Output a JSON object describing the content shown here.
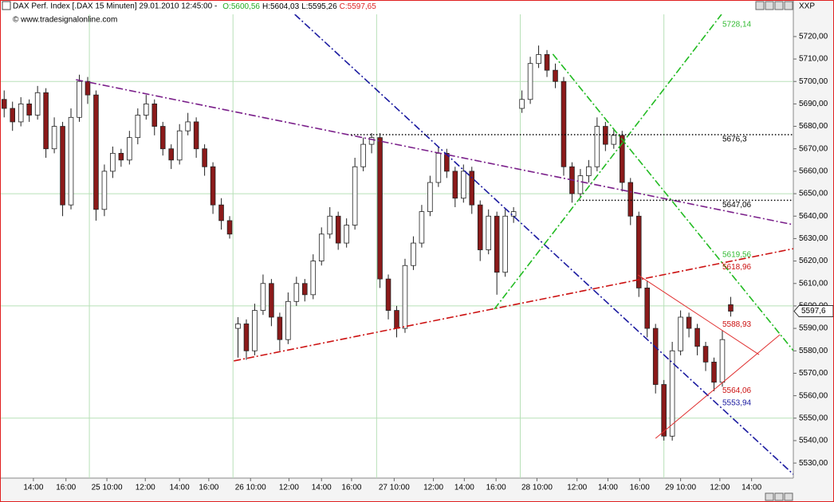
{
  "chart_data": {
    "type": "candlestick",
    "title": "DAX Perf. Index [.DAX  15 Minuten] 29.01.2010 12:45:00 -",
    "header_open": "O:5600,56",
    "header_high": "H:5604,03",
    "header_low": "L:5595,26",
    "header_close": "C:5597,65",
    "source": "© www.tradesignalonline.com",
    "corner_label": "XXP",
    "up_color": "#ffffff",
    "down_color": "#8b1a1a",
    "open": [
      5692,
      5688,
      5682,
      5690,
      5685,
      5695,
      5670,
      5680,
      5645,
      5684,
      5700,
      5694,
      5643,
      5660,
      5668,
      5665,
      5675,
      5685,
      5690,
      5680,
      5670,
      5665,
      5678,
      5682,
      5670,
      5662,
      5645,
      5638,
      5590,
      5592,
      5580,
      5598,
      5610,
      5595,
      5585,
      5602,
      5610,
      5605,
      5620,
      5632,
      5640,
      5628,
      5636,
      5662,
      5672,
      5675,
      5612,
      5598,
      5590,
      5618,
      5628,
      5642,
      5655,
      5668,
      5660,
      5648,
      5660,
      5645,
      5625,
      5640,
      5615,
      5640,
      5688,
      5692,
      5708,
      5712,
      5705,
      5700,
      5662,
      5650,
      5658,
      5662,
      5680,
      5672,
      5676,
      5655,
      5640,
      5608,
      5590,
      5565,
      5542,
      5580,
      5595,
      5590,
      5582,
      5575,
      5566,
      5600.56
    ],
    "high": [
      5696,
      5691,
      5693,
      5692,
      5698,
      5697,
      5684,
      5682,
      5688,
      5703,
      5702,
      5696,
      5663,
      5671,
      5670,
      5678,
      5688,
      5694,
      5692,
      5682,
      5672,
      5681,
      5686,
      5684,
      5672,
      5664,
      5648,
      5640,
      5595,
      5594,
      5601,
      5614,
      5612,
      5597,
      5606,
      5613,
      5612,
      5623,
      5635,
      5644,
      5642,
      5639,
      5666,
      5675,
      5677,
      5677,
      5614,
      5600,
      5621,
      5631,
      5645,
      5658,
      5671,
      5670,
      5662,
      5663,
      5662,
      5647,
      5643,
      5642,
      5643,
      5644,
      5696,
      5711,
      5716,
      5714,
      5708,
      5702,
      5664,
      5661,
      5665,
      5684,
      5682,
      5679,
      5678,
      5657,
      5642,
      5611,
      5592,
      5567,
      5584,
      5598,
      5597,
      5592,
      5584,
      5577,
      5589,
      5604.03
    ],
    "low": [
      5684,
      5678,
      5680,
      5682,
      5683,
      5666,
      5668,
      5640,
      5643,
      5682,
      5690,
      5638,
      5640,
      5657,
      5662,
      5663,
      5672,
      5683,
      5676,
      5667,
      5661,
      5663,
      5676,
      5666,
      5658,
      5641,
      5634,
      5630,
      5577,
      5576,
      5578,
      5596,
      5591,
      5580,
      5583,
      5600,
      5602,
      5603,
      5618,
      5630,
      5625,
      5626,
      5634,
      5660,
      5668,
      5608,
      5594,
      5586,
      5588,
      5616,
      5626,
      5640,
      5653,
      5657,
      5644,
      5646,
      5641,
      5620,
      5623,
      5605,
      5613,
      5637,
      5686,
      5690,
      5706,
      5702,
      5697,
      5658,
      5646,
      5648,
      5655,
      5660,
      5669,
      5670,
      5651,
      5636,
      5604,
      5586,
      5561,
      5540,
      5540,
      5578,
      5586,
      5578,
      5571,
      5562,
      5564,
      5595.26
    ],
    "close": [
      5688,
      5682,
      5690,
      5685,
      5695,
      5670,
      5680,
      5645,
      5684,
      5700,
      5694,
      5643,
      5660,
      5668,
      5665,
      5675,
      5685,
      5690,
      5680,
      5670,
      5665,
      5678,
      5682,
      5670,
      5662,
      5645,
      5638,
      5632,
      5592,
      5580,
      5598,
      5610,
      5595,
      5585,
      5602,
      5610,
      5605,
      5620,
      5632,
      5640,
      5628,
      5636,
      5662,
      5672,
      5675,
      5612,
      5598,
      5590,
      5618,
      5628,
      5642,
      5655,
      5668,
      5660,
      5648,
      5660,
      5645,
      5625,
      5640,
      5615,
      5640,
      5642,
      5692,
      5708,
      5712,
      5705,
      5700,
      5662,
      5650,
      5658,
      5662,
      5680,
      5672,
      5676,
      5655,
      5640,
      5608,
      5590,
      5565,
      5542,
      5580,
      5595,
      5590,
      5582,
      5575,
      5566,
      5585,
      5597.65
    ],
    "last_price": {
      "value": 5597.65,
      "label": "5597,6"
    },
    "xlim": [
      -0.5,
      94.5
    ],
    "ylim": [
      5523.3,
      5729.9
    ],
    "xticks": [
      {
        "value": 3.5,
        "label": "14:00"
      },
      {
        "value": 7.4,
        "label": "16:00"
      },
      {
        "value": 12.3,
        "label": "25 10:00"
      },
      {
        "value": 16.9,
        "label": "12:00"
      },
      {
        "value": 21.0,
        "label": "14:00"
      },
      {
        "value": 24.5,
        "label": "16:00"
      },
      {
        "value": 29.5,
        "label": "26 10:00"
      },
      {
        "value": 34.1,
        "label": "12:00"
      },
      {
        "value": 38.0,
        "label": "14:00"
      },
      {
        "value": 41.6,
        "label": "16:00"
      },
      {
        "value": 46.7,
        "label": "27 10:00"
      },
      {
        "value": 51.4,
        "label": "12:00"
      },
      {
        "value": 55.1,
        "label": "14:00"
      },
      {
        "value": 58.9,
        "label": "16:00"
      },
      {
        "value": 63.8,
        "label": "28 10:00"
      },
      {
        "value": 68.6,
        "label": "12:00"
      },
      {
        "value": 72.3,
        "label": "14:00"
      },
      {
        "value": 76.1,
        "label": "16:00"
      },
      {
        "value": 81.0,
        "label": "29 10:00"
      },
      {
        "value": 85.7,
        "label": "12:00"
      },
      {
        "value": 89.5,
        "label": "14:00"
      }
    ],
    "yticks": [
      {
        "value": 5530,
        "label": "5530,00"
      },
      {
        "value": 5540,
        "label": "5540,00"
      },
      {
        "value": 5550,
        "label": "5550,00"
      },
      {
        "value": 5560,
        "label": "5560,00"
      },
      {
        "value": 5570,
        "label": "5570,00"
      },
      {
        "value": 5580,
        "label": "5580,00"
      },
      {
        "value": 5590,
        "label": "5590,00"
      },
      {
        "value": 5600,
        "label": "5600,00"
      },
      {
        "value": 5610,
        "label": "5610,00"
      },
      {
        "value": 5620,
        "label": "5620,00"
      },
      {
        "value": 5630,
        "label": "5630,00"
      },
      {
        "value": 5640,
        "label": "5640,00"
      },
      {
        "value": 5650,
        "label": "5650,00"
      },
      {
        "value": 5660,
        "label": "5660,00"
      },
      {
        "value": 5670,
        "label": "5670,00"
      },
      {
        "value": 5680,
        "label": "5680,00"
      },
      {
        "value": 5690,
        "label": "5690,00"
      },
      {
        "value": 5700,
        "label": "5700,00"
      },
      {
        "value": 5710,
        "label": "5710,00"
      },
      {
        "value": 5720,
        "label": "5720,00"
      }
    ],
    "grid_color": "#b8e0b8",
    "xgrid": [
      10.2,
      27.4,
      44.6,
      61.8,
      79.0
    ],
    "ygrid": [
      5550,
      5600,
      5650,
      5700
    ],
    "trendlines": [
      {
        "color": "#7a1f8a",
        "dash": "dashdot",
        "x": [
          8.6,
          94.5
        ],
        "y": [
          5700.8,
          5636.2
        ]
      },
      {
        "color": "#1a1aa0",
        "dash": "dashdot",
        "x": [
          34.8,
          94.5
        ],
        "y": [
          5729.9,
          5525
        ]
      },
      {
        "color": "#cc1111",
        "dash": "dashdot",
        "x": [
          27.5,
          94.5
        ],
        "y": [
          5575.5,
          5625.5
        ]
      },
      {
        "color": "#22bb22",
        "dash": "dashdot",
        "x": [
          58.7,
          85.9
        ],
        "y": [
          5598.6,
          5729.9
        ]
      },
      {
        "color": "#22bb22",
        "dash": "dashdot",
        "x": [
          65.7,
          94.5
        ],
        "y": [
          5712.2,
          5580.1
        ]
      },
      {
        "color": "#000000",
        "dash": "dotted",
        "x": [
          41.5,
          94.5
        ],
        "y": [
          5676.3,
          5676.3
        ]
      },
      {
        "color": "#000000",
        "dash": "dotted",
        "x": [
          68.9,
          94.5
        ],
        "y": [
          5647.06,
          5647.06
        ]
      },
      {
        "color": "#e03030",
        "dash": "solid",
        "x": [
          75.9,
          90.4
        ],
        "y": [
          5613.8,
          5578.3
        ]
      },
      {
        "color": "#e03030",
        "dash": "solid",
        "x": [
          78.0,
          92.9
        ],
        "y": [
          5541.0,
          5587.2
        ]
      }
    ],
    "annotations": [
      {
        "value": 5728.14,
        "label": "5728,14",
        "color": "#33bb33"
      },
      {
        "value": 5676.3,
        "label": "5676,3",
        "color": "#000000"
      },
      {
        "value": 5647.06,
        "label": "5647,06",
        "color": "#000000"
      },
      {
        "value": 5619.56,
        "label": "5619,56",
        "color": "#33bb33"
      },
      {
        "value": 5618.96,
        "label": "5618,96",
        "color": "#cc1111"
      },
      {
        "value": 5588.93,
        "label": "5588,93",
        "color": "#cc1111"
      },
      {
        "value": 5564.06,
        "label": "5564,06",
        "color": "#cc1111"
      },
      {
        "value": 5553.94,
        "label": "5553,94",
        "color": "#1a1aa0"
      }
    ],
    "annotation_x": 86.0
  }
}
